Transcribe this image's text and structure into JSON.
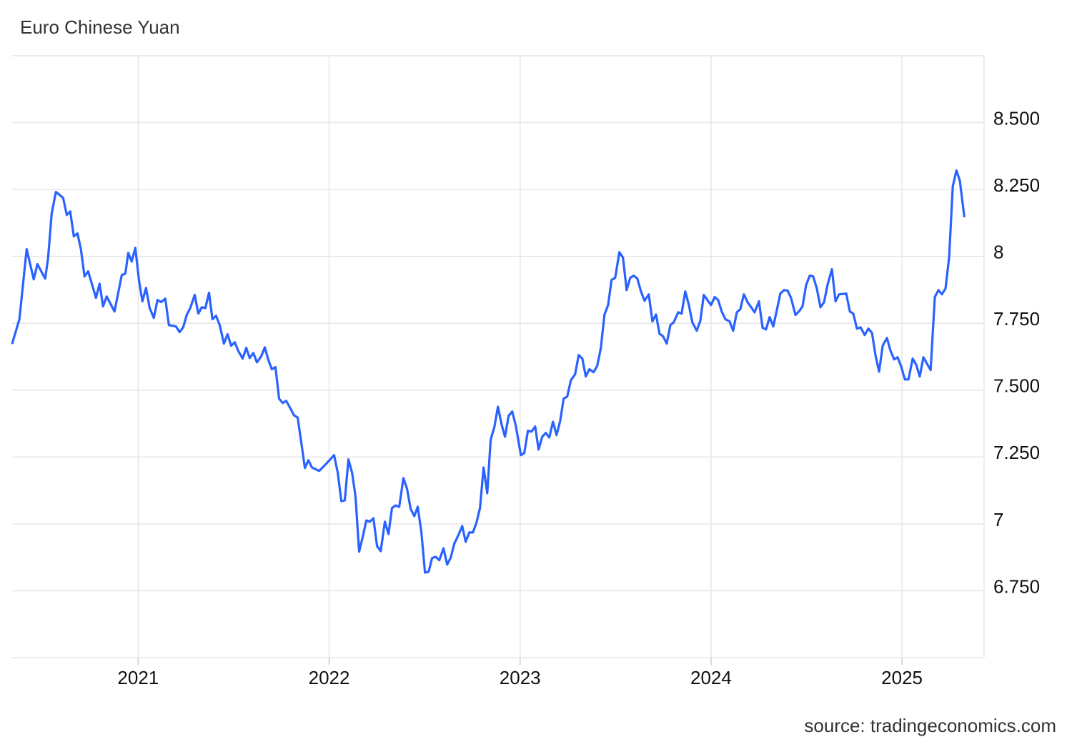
{
  "chart_data": {
    "type": "line",
    "title": "Euro Chinese Yuan",
    "source": "source: tradingeconomics.com",
    "xlim": [
      2020.34,
      2025.43
    ],
    "xticks": [
      2021,
      2022,
      2023,
      2024,
      2025
    ],
    "ylim": [
      6.5,
      8.75
    ],
    "yticks": [
      {
        "value": 6.75,
        "label": "6.750"
      },
      7,
      {
        "value": 7.25,
        "label": "7.250"
      },
      {
        "value": 7.5,
        "label": "7.500"
      },
      {
        "value": 7.75,
        "label": "7.750"
      },
      8,
      {
        "value": 8.25,
        "label": "8.250"
      },
      {
        "value": 8.5,
        "label": "8.500"
      }
    ],
    "grid": true,
    "series": [
      {
        "color": "#2962ff",
        "x": [
          2020.341,
          2020.378,
          2020.416,
          2020.453,
          2020.472,
          2020.513,
          2020.528,
          2020.547,
          2020.569,
          2020.607,
          2020.626,
          2020.644,
          2020.663,
          2020.682,
          2020.7,
          2020.719,
          2020.738,
          2020.779,
          2020.798,
          2020.816,
          2020.835,
          2020.876,
          2020.914,
          2020.933,
          2020.948,
          2020.966,
          2020.985,
          2021.004,
          2021.022,
          2021.041,
          2021.06,
          2021.082,
          2021.101,
          2021.12,
          2021.142,
          2021.161,
          2021.198,
          2021.217,
          2021.236,
          2021.255,
          2021.273,
          2021.296,
          2021.315,
          2021.333,
          2021.352,
          2021.371,
          2021.389,
          2021.408,
          2021.427,
          2021.449,
          2021.468,
          2021.487,
          2021.506,
          2021.524,
          2021.547,
          2021.566,
          2021.584,
          2021.603,
          2021.622,
          2021.644,
          2021.663,
          2021.682,
          2021.7,
          2021.719,
          2021.738,
          2021.757,
          2021.775,
          2021.794,
          2021.816,
          2021.835,
          2021.854,
          2021.873,
          2021.891,
          2021.91,
          2021.948,
          2021.985,
          2022.026,
          2022.045,
          2022.064,
          2022.082,
          2022.101,
          2022.12,
          2022.138,
          2022.157,
          2022.176,
          2022.195,
          2022.213,
          2022.232,
          2022.251,
          2022.27,
          2022.292,
          2022.311,
          2022.329,
          2022.348,
          2022.367,
          2022.389,
          2022.408,
          2022.427,
          2022.446,
          2022.464,
          2022.483,
          2022.502,
          2022.521,
          2022.539,
          2022.558,
          2022.577,
          2022.599,
          2022.618,
          2022.637,
          2022.655,
          2022.678,
          2022.697,
          2022.715,
          2022.734,
          2022.753,
          2022.771,
          2022.79,
          2022.809,
          2022.828,
          2022.846,
          2022.865,
          2022.884,
          2022.903,
          2022.921,
          2022.94,
          2022.959,
          2022.978,
          2023.004,
          2023.022,
          2023.041,
          2023.06,
          2023.079,
          2023.097,
          2023.116,
          2023.135,
          2023.153,
          2023.172,
          2023.191,
          2023.21,
          2023.228,
          2023.247,
          2023.266,
          2023.288,
          2023.307,
          2023.326,
          2023.344,
          2023.363,
          2023.385,
          2023.404,
          2023.423,
          2023.442,
          2023.461,
          2023.479,
          2023.498,
          2023.52,
          2023.539,
          2023.558,
          2023.577,
          2023.595,
          2023.614,
          2023.633,
          2023.652,
          2023.674,
          2023.693,
          2023.712,
          2023.73,
          2023.749,
          2023.768,
          2023.787,
          2023.805,
          2023.828,
          2023.846,
          2023.865,
          2023.884,
          2023.902,
          2023.925,
          2023.944,
          2023.962,
          2023.981,
          2024.0,
          2024.019,
          2024.037,
          2024.056,
          2024.075,
          2024.097,
          2024.116,
          2024.135,
          2024.153,
          2024.172,
          2024.191,
          2024.21,
          2024.228,
          2024.251,
          2024.27,
          2024.288,
          2024.307,
          2024.326,
          2024.344,
          2024.363,
          2024.382,
          2024.401,
          2024.419,
          2024.442,
          2024.46,
          2024.479,
          2024.498,
          2024.517,
          2024.535,
          2024.554,
          2024.573,
          2024.592,
          2024.61,
          2024.633,
          2024.652,
          2024.67,
          2024.708,
          2024.727,
          2024.745,
          2024.764,
          2024.783,
          2024.805,
          2024.824,
          2024.843,
          2024.861,
          2024.88,
          2024.899,
          2024.921,
          2024.94,
          2024.959,
          2024.977,
          2024.996,
          2025.015,
          2025.034,
          2025.056,
          2025.075,
          2025.093,
          2025.112,
          2025.131,
          2025.15,
          2025.172,
          2025.191,
          2025.209,
          2025.228,
          2025.247,
          2025.266,
          2025.285,
          2025.303,
          2025.326
        ],
        "values": [
          7.676,
          7.765,
          8.027,
          7.914,
          7.971,
          7.917,
          7.992,
          8.16,
          8.241,
          8.219,
          8.155,
          8.168,
          8.075,
          8.086,
          8.027,
          7.925,
          7.944,
          7.845,
          7.898,
          7.813,
          7.85,
          7.794,
          7.93,
          7.936,
          8.013,
          7.981,
          8.032,
          7.912,
          7.832,
          7.882,
          7.807,
          7.77,
          7.837,
          7.829,
          7.842,
          7.743,
          7.738,
          7.717,
          7.735,
          7.783,
          7.807,
          7.856,
          7.786,
          7.81,
          7.807,
          7.864,
          7.765,
          7.778,
          7.743,
          7.674,
          7.709,
          7.666,
          7.679,
          7.647,
          7.618,
          7.658,
          7.62,
          7.639,
          7.604,
          7.626,
          7.66,
          7.612,
          7.578,
          7.586,
          7.468,
          7.452,
          7.46,
          7.436,
          7.406,
          7.398,
          7.305,
          7.209,
          7.238,
          7.211,
          7.198,
          7.225,
          7.257,
          7.192,
          7.085,
          7.088,
          7.241,
          7.192,
          7.104,
          6.896,
          6.952,
          7.013,
          7.008,
          7.021,
          6.917,
          6.898,
          7.008,
          6.962,
          7.059,
          7.069,
          7.064,
          7.171,
          7.131,
          7.056,
          7.029,
          7.064,
          6.97,
          6.818,
          6.821,
          6.872,
          6.877,
          6.864,
          6.909,
          6.848,
          6.874,
          6.925,
          6.96,
          6.992,
          6.933,
          6.968,
          6.968,
          7.003,
          7.059,
          7.211,
          7.115,
          7.315,
          7.361,
          7.438,
          7.372,
          7.326,
          7.404,
          7.42,
          7.366,
          7.257,
          7.265,
          7.348,
          7.345,
          7.364,
          7.278,
          7.326,
          7.34,
          7.323,
          7.382,
          7.332,
          7.385,
          7.468,
          7.476,
          7.537,
          7.559,
          7.631,
          7.618,
          7.551,
          7.578,
          7.567,
          7.591,
          7.658,
          7.783,
          7.818,
          7.912,
          7.92,
          8.016,
          7.995,
          7.874,
          7.92,
          7.928,
          7.917,
          7.869,
          7.834,
          7.858,
          7.757,
          7.783,
          7.711,
          7.701,
          7.674,
          7.743,
          7.754,
          7.791,
          7.786,
          7.869,
          7.818,
          7.754,
          7.722,
          7.759,
          7.856,
          7.837,
          7.818,
          7.848,
          7.837,
          7.794,
          7.765,
          7.757,
          7.722,
          7.791,
          7.802,
          7.858,
          7.829,
          7.81,
          7.791,
          7.832,
          7.733,
          7.727,
          7.773,
          7.738,
          7.797,
          7.861,
          7.874,
          7.872,
          7.845,
          7.781,
          7.794,
          7.813,
          7.893,
          7.928,
          7.925,
          7.88,
          7.81,
          7.829,
          7.893,
          7.952,
          7.832,
          7.858,
          7.861,
          7.794,
          7.786,
          7.73,
          7.735,
          7.706,
          7.73,
          7.714,
          7.631,
          7.569,
          7.666,
          7.695,
          7.647,
          7.615,
          7.623,
          7.588,
          7.54,
          7.54,
          7.618,
          7.594,
          7.551,
          7.623,
          7.599,
          7.575,
          7.848,
          7.874,
          7.858,
          7.88,
          7.997,
          8.262,
          8.321,
          8.283,
          8.15
        ]
      }
    ]
  }
}
